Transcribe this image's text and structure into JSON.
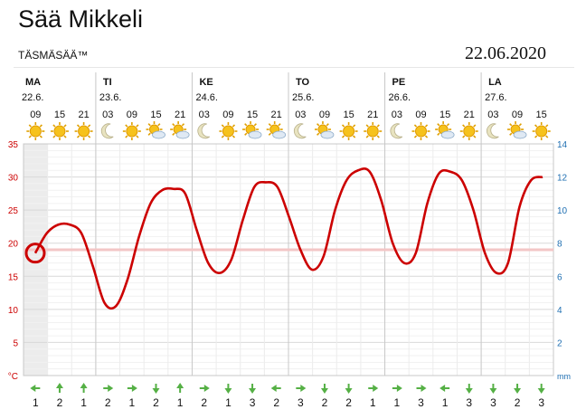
{
  "page": {
    "title": "Sää Mikkeli",
    "brand": "TÄSMÄSÄÄ™",
    "date": "22.06.2020"
  },
  "chart_data": {
    "type": "line",
    "ylabel_left": "°C",
    "ylabel_right": "mm",
    "ylim_left": [
      0,
      35
    ],
    "ylim_right": [
      0,
      14
    ],
    "left_ticks": [
      0,
      5,
      10,
      15,
      20,
      25,
      30,
      35
    ],
    "right_ticks": [
      2,
      4,
      6,
      8,
      10,
      12,
      14
    ],
    "left_tick_labels": [
      "°C",
      "5",
      "10",
      "15",
      "20",
      "25",
      "30",
      "35"
    ],
    "right_tick_labels": [
      "2",
      "4",
      "6",
      "8",
      "10",
      "12",
      "14"
    ],
    "days": [
      {
        "name": "MA",
        "date": "22.6."
      },
      {
        "name": "TI",
        "date": "23.6."
      },
      {
        "name": "KE",
        "date": "24.6."
      },
      {
        "name": "TO",
        "date": "25.6."
      },
      {
        "name": "PE",
        "date": "26.6."
      },
      {
        "name": "LA",
        "date": "27.6."
      }
    ],
    "hours": [
      "09",
      "15",
      "21",
      "03",
      "09",
      "15",
      "21",
      "03",
      "09",
      "15",
      "21",
      "03",
      "09",
      "15",
      "21",
      "03",
      "09",
      "15",
      "21",
      "03",
      "09",
      "15"
    ],
    "weather_icons": [
      "sun-icon",
      "sun-icon",
      "sun-icon",
      "moon-icon",
      "sun-icon",
      "partly-cloudy-icon",
      "partly-cloudy-icon",
      "moon-icon",
      "sun-icon",
      "partly-cloudy-icon",
      "partly-cloudy-icon",
      "moon-icon",
      "partly-cloudy-icon",
      "sun-icon",
      "sun-icon",
      "moon-icon",
      "sun-icon",
      "partly-cloudy-icon",
      "sun-icon",
      "moon-icon",
      "partly-cloudy-icon",
      "sun-icon"
    ],
    "series": [
      {
        "values": [
          18.5,
          21.5,
          22.8,
          22.8,
          21.5,
          16.5,
          11.0,
          10.5,
          14.5,
          21.0,
          26.0,
          28.0,
          28.2,
          27.5,
          22.0,
          17.0,
          15.5,
          17.5,
          23.5,
          28.5,
          29.2,
          28.5,
          24.0,
          19.0,
          16.0,
          18.0,
          25.0,
          29.5,
          31.0,
          30.8,
          26.5,
          20.0,
          17.0,
          18.5,
          26.0,
          30.5,
          30.8,
          29.5,
          25.0,
          18.5,
          15.5,
          17.0,
          25.5,
          29.5,
          30.0
        ]
      }
    ],
    "series_hours": [
      9,
      12,
      15,
      18,
      21,
      24,
      27,
      30,
      33,
      36,
      39,
      42,
      45,
      48,
      51,
      54,
      57,
      60,
      63,
      66,
      69,
      72,
      75,
      78,
      81,
      84,
      87,
      90,
      93,
      96,
      99,
      102,
      105,
      108,
      111,
      114,
      117,
      120,
      123,
      126,
      129,
      132,
      135,
      138,
      141
    ],
    "reference_line": 19,
    "current_marker": {
      "hour": 9,
      "value": 18.5
    },
    "wind_directions": [
      "left",
      "up",
      "up",
      "right",
      "right",
      "down",
      "up",
      "right",
      "down",
      "down",
      "left",
      "right",
      "down",
      "down",
      "right",
      "right",
      "right",
      "left",
      "down",
      "down",
      "down",
      "down"
    ],
    "wind_speeds": [
      "1",
      "2",
      "1",
      "2",
      "1",
      "2",
      "1",
      "2",
      "1",
      "3",
      "2",
      "3",
      "2",
      "2",
      "1",
      "1",
      "3",
      "1",
      "3",
      "3",
      "2",
      "3"
    ],
    "colors": {
      "line": "#cc0000",
      "ref": "#f3c6c6",
      "left_axis": "#cc0000",
      "right_axis": "#1f6fb2",
      "arrow": "#55b045"
    }
  }
}
